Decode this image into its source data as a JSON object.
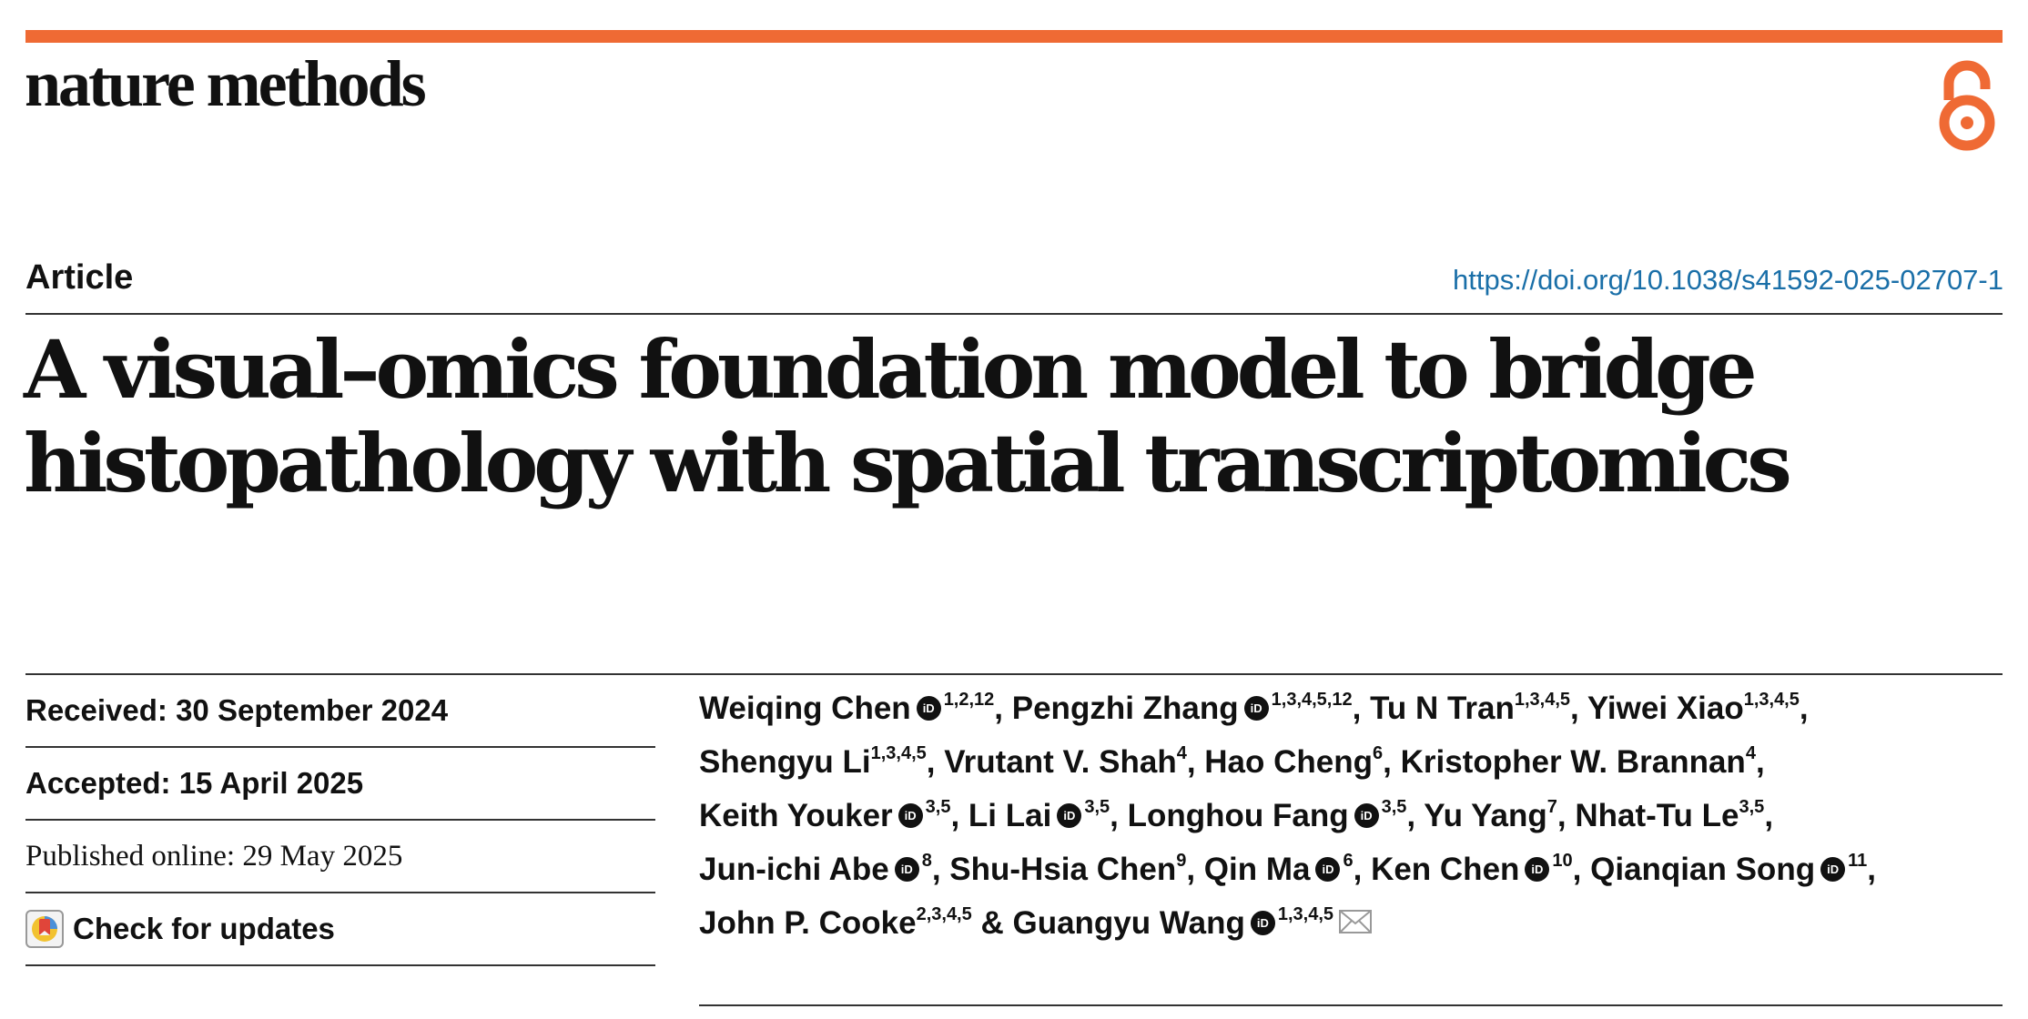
{
  "journal": "nature methods",
  "article_type": "Article",
  "doi": "https://doi.org/10.1038/s41592-025-02707-1",
  "title_line1": "A visual–omics foundation model to bridge",
  "title_line2": "histopathology with spatial transcriptomics",
  "dates": {
    "received": "Received: 30 September 2024",
    "accepted": "Accepted: 15 April 2025",
    "published": "Published online: 29 May 2025",
    "check_updates": "Check for updates"
  },
  "icons": {
    "open_access": "open-access-lock-icon",
    "orcid": "orcid-icon",
    "mail": "mail-icon",
    "check_updates": "check-for-updates-icon"
  },
  "colors": {
    "accent": "#ef6a34",
    "link": "#1a6fa8"
  },
  "authors": [
    {
      "name": "Weiqing Chen",
      "orcid": true,
      "aff": "1,2,12",
      "sep": ", "
    },
    {
      "name": "Pengzhi Zhang",
      "orcid": true,
      "aff": "1,3,4,5,12",
      "sep": ", "
    },
    {
      "name": "Tu N Tran",
      "orcid": false,
      "aff": "1,3,4,5",
      "sep": ", "
    },
    {
      "name": "Yiwei Xiao",
      "orcid": false,
      "aff": "1,3,4,5",
      "sep": ", "
    },
    {
      "name": "Shengyu Li",
      "orcid": false,
      "aff": "1,3,4,5",
      "sep": ", "
    },
    {
      "name": "Vrutant V. Shah",
      "orcid": false,
      "aff": "4",
      "sep": ", "
    },
    {
      "name": "Hao Cheng",
      "orcid": false,
      "aff": "6",
      "sep": ", "
    },
    {
      "name": "Kristopher W. Brannan",
      "orcid": false,
      "aff": "4",
      "sep": ", "
    },
    {
      "name": "Keith Youker",
      "orcid": true,
      "aff": "3,5",
      "sep": ", "
    },
    {
      "name": "Li Lai",
      "orcid": true,
      "aff": "3,5",
      "sep": ", "
    },
    {
      "name": "Longhou Fang",
      "orcid": true,
      "aff": "3,5",
      "sep": ", "
    },
    {
      "name": "Yu Yang",
      "orcid": false,
      "aff": "7",
      "sep": ", "
    },
    {
      "name": "Nhat-Tu Le",
      "orcid": false,
      "aff": "3,5",
      "sep": ", "
    },
    {
      "name": "Jun-ichi Abe",
      "orcid": true,
      "aff": "8",
      "sep": ", "
    },
    {
      "name": "Shu-Hsia Chen",
      "orcid": false,
      "aff": "9",
      "sep": ", "
    },
    {
      "name": "Qin Ma",
      "orcid": true,
      "aff": "6",
      "sep": ", "
    },
    {
      "name": "Ken Chen",
      "orcid": true,
      "aff": "10",
      "sep": ", "
    },
    {
      "name": "Qianqian Song",
      "orcid": true,
      "aff": "11",
      "sep": ", "
    },
    {
      "name": "John P. Cooke",
      "orcid": false,
      "aff": "2,3,4,5",
      "sep": " & "
    },
    {
      "name": "Guangyu Wang",
      "orcid": true,
      "aff": "1,3,4,5",
      "sep": "",
      "mail": true
    }
  ]
}
